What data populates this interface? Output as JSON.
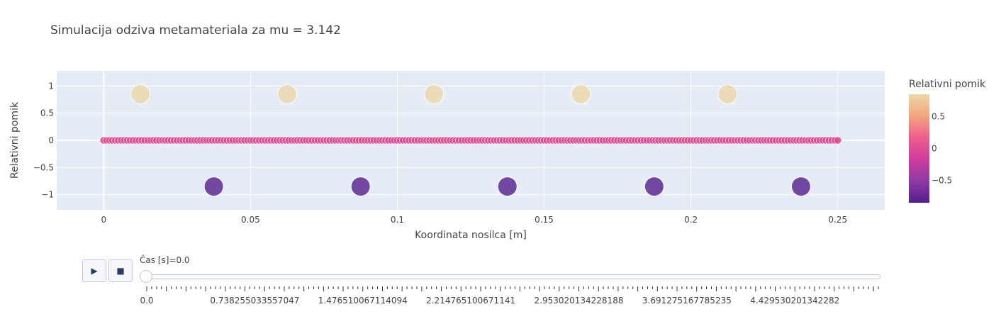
{
  "chart_data": {
    "type": "scatter",
    "title": "Simulacija odziva metamateriala za mu = 3.142",
    "xlabel": "Koordinata nosilca [m]",
    "ylabel": "Relativni pomik",
    "xlim": [
      -0.016,
      0.266
    ],
    "ylim": [
      -1.28,
      1.28
    ],
    "x_ticks": [
      0,
      0.05,
      0.1,
      0.15,
      0.2,
      0.25
    ],
    "x_tick_labels": [
      "0",
      "0.05",
      "0.1",
      "0.15",
      "0.2",
      "0.25"
    ],
    "y_ticks": [
      1,
      0.5,
      0,
      -0.5,
      -1
    ],
    "y_tick_labels": [
      "1",
      "0.5",
      "0",
      "−0.5",
      "−1"
    ],
    "grid": true,
    "beam": {
      "x_start": 0,
      "x_end": 0.25,
      "y": 0,
      "count": 251
    },
    "resonators": {
      "x": [
        0.0125,
        0.0375,
        0.0625,
        0.0875,
        0.1125,
        0.1375,
        0.1625,
        0.1875,
        0.2125,
        0.2375
      ],
      "y": [
        0.85,
        -0.85,
        0.85,
        -0.85,
        0.85,
        -0.85,
        0.85,
        -0.85,
        0.85,
        -0.85
      ]
    },
    "colorbar": {
      "title": "Relativni pomik",
      "range": [
        -0.85,
        0.85
      ],
      "ticks": [
        0.5,
        0,
        -0.5
      ],
      "tick_labels": [
        "0.5",
        "0",
        "−0.5"
      ],
      "colors": [
        "#ecd7a9",
        "#f4a47e",
        "#ee5d8c",
        "#cf3c9c",
        "#8f3aa3",
        "#541e8d"
      ]
    }
  },
  "animation": {
    "play_icon": "▶",
    "stop_icon": "■",
    "slider_prefix": "Čas [s]=",
    "slider_value": "0.0",
    "tick_labels": [
      "0.0",
      "0.738255033557047",
      "1.476510067114094",
      "2.214765100671141",
      "2.953020134228188",
      "3.691275167785235",
      "4.429530201342282"
    ],
    "tick_count": 150
  }
}
